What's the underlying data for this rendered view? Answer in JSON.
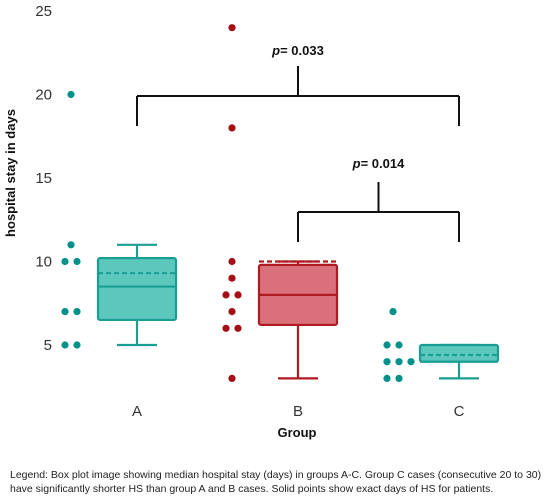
{
  "chart_data": {
    "type": "box",
    "ylabel": "hospital stay in days",
    "xlabel": "Group",
    "ylim": [
      2,
      25
    ],
    "yticks": [
      "5",
      "10",
      "15",
      "20",
      "25"
    ],
    "categories": [
      "A",
      "B",
      "C"
    ],
    "boxes": [
      {
        "group": "A",
        "min": 5,
        "q1": 6.5,
        "median": 8.5,
        "q3": 10.2,
        "max": 11,
        "mean": 9.3,
        "color": "#1a9e94",
        "fill": "#5cc8bd"
      },
      {
        "group": "B",
        "min": 3,
        "q1": 6.2,
        "median": 8,
        "q3": 9.8,
        "max": 10,
        "mean": 10,
        "color": "#b01a22",
        "fill": "#d9707a"
      },
      {
        "group": "C",
        "min": 3,
        "q1": 4,
        "median": 4,
        "q3": 5,
        "max": 5,
        "mean": 4.4,
        "color": "#1a9e94",
        "fill": "#5cc8bd"
      }
    ],
    "points": [
      {
        "group": "A",
        "color": "#00918a",
        "values": [
          5,
          5,
          7,
          7,
          10,
          10,
          11,
          20
        ]
      },
      {
        "group": "B",
        "color": "#a50e14",
        "values": [
          3,
          6,
          6,
          7,
          8,
          8,
          9,
          10,
          18,
          24
        ]
      },
      {
        "group": "C",
        "color": "#00918a",
        "values": [
          3,
          3,
          4,
          4,
          4,
          5,
          5,
          7
        ]
      }
    ],
    "comparisons": [
      {
        "groups": [
          "A",
          "C"
        ],
        "p_prefix": "p",
        "p_value": "= 0.033"
      },
      {
        "groups": [
          "B",
          "C"
        ],
        "p_prefix": "p",
        "p_value": "= 0.014"
      }
    ]
  },
  "caption": "Legend: Box plot image showing median hospital stay (days) in groups A-C. Group C cases (consecutive 20 to 30) have significantly shorter HS than group A and B cases. Solid points show exact days of HS for patients."
}
